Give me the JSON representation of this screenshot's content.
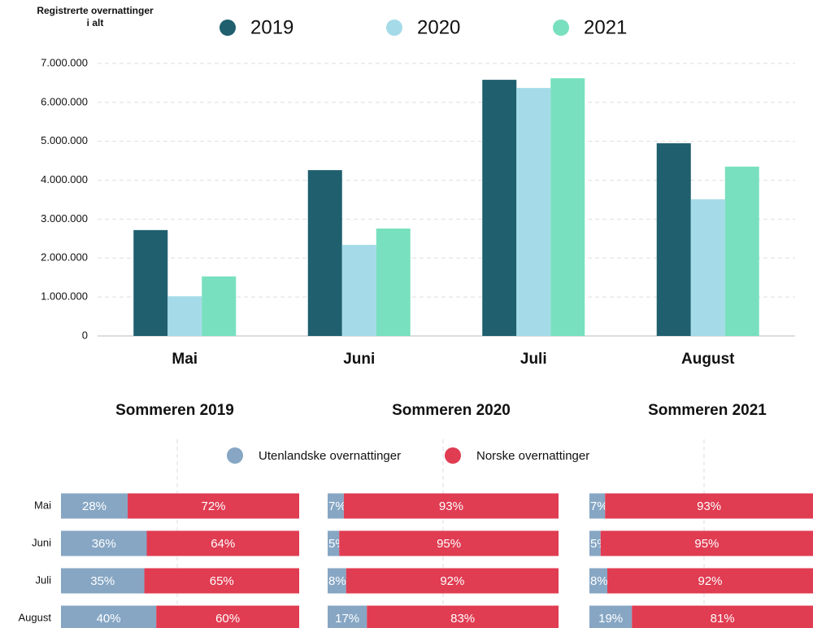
{
  "chart_data": [
    {
      "type": "bar",
      "y_label": "Registrerte overnattinger i alt",
      "categories": [
        "Mai",
        "Juni",
        "Juli",
        "August"
      ],
      "series": [
        {
          "name": "2019",
          "color": "#1f5f6e",
          "values": [
            2720000,
            4260000,
            6580000,
            4950000
          ]
        },
        {
          "name": "2020",
          "color": "#a5dbe8",
          "values": [
            1020000,
            2340000,
            6370000,
            3510000
          ]
        },
        {
          "name": "2021",
          "color": "#78e0bf",
          "values": [
            1530000,
            2760000,
            6620000,
            4350000
          ]
        }
      ],
      "ylim": [
        0,
        7000000
      ],
      "yticks": [
        0,
        {
          "value": 1000000,
          "label": "1.000.000"
        },
        {
          "value": 2000000,
          "label": "2.000.000"
        },
        {
          "value": 3000000,
          "label": "3.000.000"
        },
        {
          "value": 4000000,
          "label": "4.000.000"
        },
        {
          "value": 5000000,
          "label": "5.000.000"
        },
        {
          "value": 6000000,
          "label": "6.000.000"
        },
        {
          "value": 7000000,
          "label": "7.000.000"
        }
      ],
      "grid": true
    },
    {
      "type": "stacked_hbar",
      "title": "Sommeren 2019",
      "categories": [
        "Mai",
        "Juni",
        "Juli",
        "August"
      ],
      "series": [
        {
          "name": "Utenlandske overnattinger",
          "color": "#86a6c4",
          "values": [
            28,
            36,
            35,
            40
          ],
          "value_labels": [
            "28%",
            "36%",
            "35%",
            "40%"
          ]
        },
        {
          "name": "Norske overnattinger",
          "color": "#e03c52",
          "values": [
            72,
            64,
            65,
            60
          ],
          "value_labels": [
            "72%",
            "64%",
            "65%",
            "60%"
          ]
        }
      ],
      "xlim": [
        0,
        100
      ]
    },
    {
      "type": "stacked_hbar",
      "title": "Sommeren 2020",
      "series": [
        {
          "color": "#86a6c4",
          "values": [
            7,
            5,
            8,
            17
          ],
          "value_labels": [
            "7%",
            "5%",
            "8%",
            "17%"
          ]
        },
        {
          "color": "#e03c52",
          "values": [
            93,
            95,
            92,
            83
          ],
          "value_labels": [
            "93%",
            "95%",
            "92%",
            "83%"
          ]
        }
      ],
      "xlim": [
        0,
        100
      ]
    },
    {
      "type": "stacked_hbar",
      "title": "Sommeren 2021",
      "series": [
        {
          "color": "#86a6c4",
          "values": [
            7,
            5,
            8,
            19
          ],
          "value_labels": [
            "7%",
            "5%",
            "8%",
            "19%"
          ]
        },
        {
          "color": "#e03c52",
          "values": [
            93,
            95,
            92,
            81
          ],
          "value_labels": [
            "93%",
            "95%",
            "92%",
            "81%"
          ]
        }
      ],
      "xlim": [
        0,
        100
      ]
    }
  ]
}
